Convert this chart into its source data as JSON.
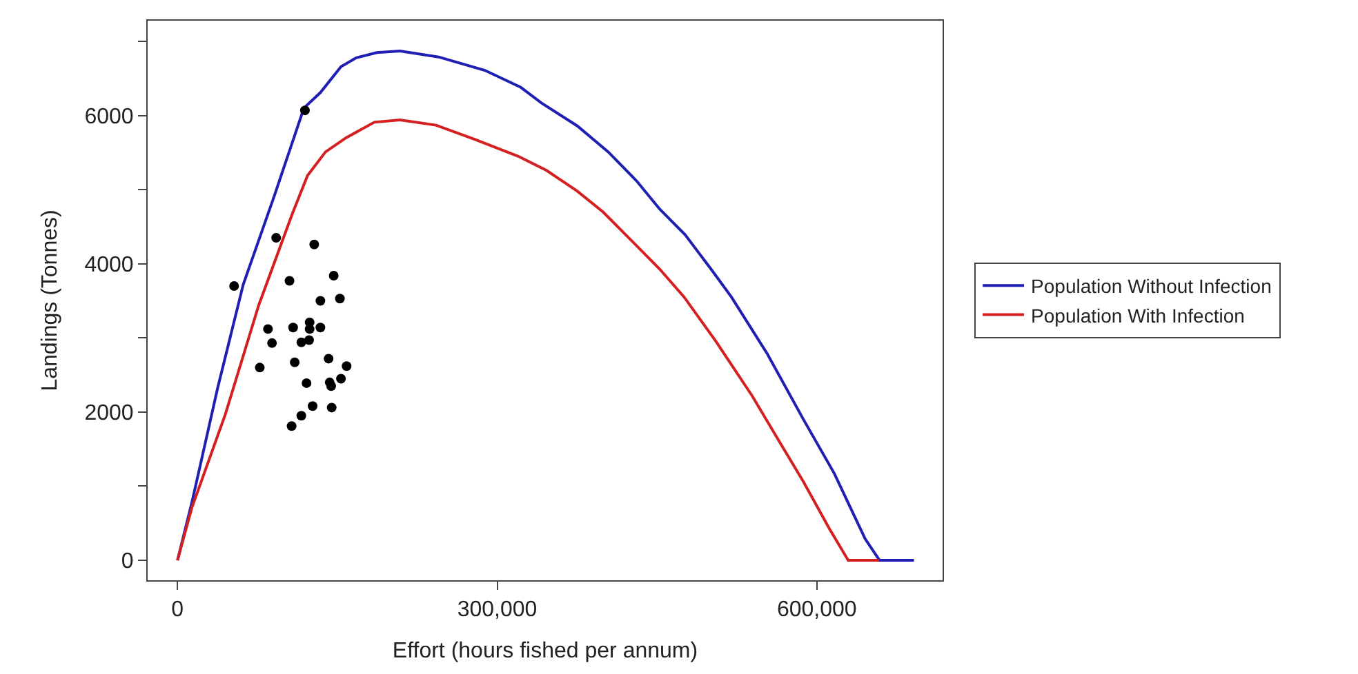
{
  "chart_data": {
    "type": "line",
    "xlabel": "Effort (hours fished per annum)",
    "ylabel": "Landings (Tonnes)",
    "xlim": [
      -28000,
      718000
    ],
    "ylim": [
      -270,
      7280
    ],
    "xticks": [
      0,
      {
        "value": 300000,
        "label": "300,000"
      },
      {
        "value": 600000,
        "label": "600,000"
      }
    ],
    "yticks": [
      0,
      {
        "value": 1000,
        "label": null
      },
      2000,
      {
        "value": 3000,
        "label": null
      },
      4000,
      {
        "value": 5000,
        "label": null
      },
      6000,
      {
        "value": 7000,
        "label": null
      }
    ],
    "legend": "right",
    "series": [
      {
        "name": "Population Without Infection",
        "color": "#1f1fb4",
        "marker": "none",
        "x": [
          0,
          13500,
          37600,
          61700,
          90700,
          118600,
          134100,
          153400,
          167800,
          187100,
          208800,
          245000,
          288400,
          322200,
          341500,
          375200,
          404200,
          430700,
          452400,
          476500,
          500600,
          519900,
          553700,
          587400,
          616400,
          645300,
          658800,
          691100
        ],
        "values": [
          0,
          780,
          2320,
          3720,
          4910,
          6100,
          6310,
          6660,
          6780,
          6850,
          6870,
          6790,
          6610,
          6380,
          6170,
          5860,
          5510,
          5120,
          4740,
          4390,
          3930,
          3550,
          2780,
          1900,
          1170,
          290,
          0,
          0
        ]
      },
      {
        "name": "Population With Infection",
        "color": "#d42020",
        "marker": "none",
        "x": [
          0,
          13500,
          44900,
          76200,
          107600,
          122000,
          138900,
          158200,
          184700,
          208800,
          242600,
          278800,
          319800,
          346300,
          375200,
          399300,
          428300,
          452400,
          475500,
          505400,
          539200,
          568200,
          587400,
          611600,
          629400,
          658300
        ],
        "values": [
          0,
          710,
          1970,
          3440,
          4670,
          5190,
          5510,
          5700,
          5910,
          5940,
          5870,
          5680,
          5450,
          5260,
          4980,
          4700,
          4280,
          3930,
          3550,
          2950,
          2220,
          1520,
          1060,
          430,
          0,
          0
        ]
      },
      {
        "color": "#000000",
        "type": "scatter",
        "marker": "circle",
        "x": [
          119600,
          92600,
          128300,
          53100,
          105100,
          146600,
          134100,
          152400,
          84900,
          108500,
          124000,
          124000,
          134100,
          88700,
          116200,
          123500,
          77200,
          110000,
          141800,
          158700,
          121100,
          142800,
          144200,
          153400,
          126800,
          144700,
          116200,
          107100
        ],
        "values": [
          6070,
          4350,
          4260,
          3700,
          3770,
          3840,
          3500,
          3530,
          3120,
          3140,
          3210,
          3120,
          3140,
          2930,
          2940,
          2970,
          2600,
          2670,
          2720,
          2620,
          2390,
          2400,
          2350,
          2450,
          2080,
          2060,
          1950,
          1810
        ]
      }
    ]
  }
}
